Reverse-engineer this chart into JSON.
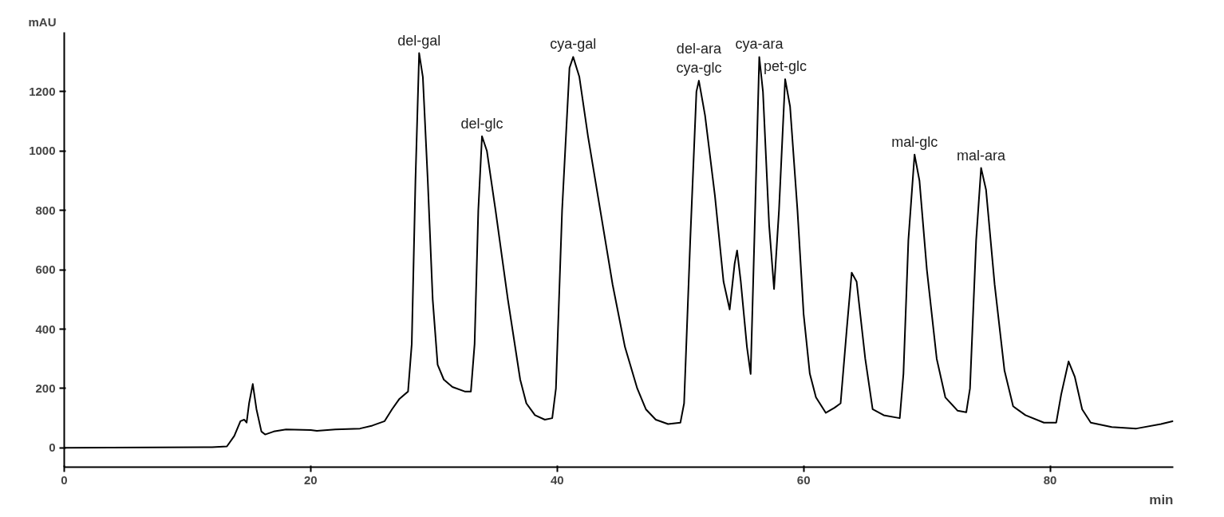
{
  "chart_data": {
    "type": "line",
    "xlabel": "min",
    "ylabel": "mAU",
    "x": [
      0,
      12,
      13.2,
      13.8,
      14.3,
      14.6,
      14.8,
      15.0,
      15.3,
      15.6,
      16.0,
      16.3,
      17,
      18,
      20,
      20.5,
      22,
      24,
      25,
      26,
      26.6,
      27.2,
      27.9,
      28.2,
      28.5,
      28.8,
      29.1,
      29.5,
      29.9,
      30.3,
      30.8,
      31.5,
      32.5,
      33.0,
      33.3,
      33.6,
      33.9,
      34.3,
      35,
      36,
      37,
      37.5,
      38.2,
      39,
      39.6,
      39.9,
      40.4,
      41.0,
      41.3,
      41.8,
      42.5,
      43.5,
      44.5,
      45.5,
      46.5,
      47.2,
      48,
      49,
      50,
      50.3,
      50.8,
      51.3,
      51.5,
      52,
      52.8,
      53.5,
      54,
      54.4,
      54.6,
      54.9,
      55.4,
      55.7,
      56.0,
      56.4,
      56.7,
      57.2,
      57.6,
      58.0,
      58.5,
      58.9,
      59.5,
      60,
      60.5,
      61,
      61.8,
      62.5,
      63.0,
      63.5,
      63.9,
      64.3,
      65,
      65.6,
      66.5,
      67.8,
      68.1,
      68.5,
      69.0,
      69.4,
      70,
      70.8,
      71.5,
      72.5,
      73.2,
      73.5,
      74.0,
      74.4,
      74.8,
      75.5,
      76.3,
      77,
      78,
      79.5,
      80.5,
      80.9,
      81.5,
      82,
      82.6,
      83.3,
      85,
      87,
      89,
      90
    ],
    "series": [
      {
        "color": "#000000",
        "values": [
          0,
          2,
          5,
          40,
          90,
          95,
          85,
          150,
          215,
          130,
          55,
          45,
          55,
          62,
          60,
          57,
          62,
          65,
          75,
          90,
          130,
          165,
          190,
          350,
          900,
          1330,
          1250,
          900,
          500,
          280,
          230,
          205,
          190,
          190,
          350,
          800,
          1050,
          1000,
          800,
          500,
          230,
          150,
          110,
          95,
          100,
          200,
          800,
          1280,
          1317,
          1250,
          1050,
          800,
          550,
          340,
          200,
          130,
          95,
          80,
          85,
          150,
          700,
          1200,
          1237,
          1120,
          850,
          560,
          466,
          620,
          665,
          560,
          340,
          249,
          700,
          1317,
          1200,
          750,
          535,
          800,
          1242,
          1150,
          800,
          450,
          250,
          170,
          118,
          135,
          150,
          400,
          590,
          560,
          300,
          130,
          110,
          100,
          250,
          700,
          988,
          900,
          600,
          300,
          170,
          125,
          120,
          200,
          700,
          943,
          870,
          550,
          260,
          140,
          110,
          85,
          85,
          180,
          291,
          240,
          130,
          85,
          70,
          65,
          80,
          90
        ]
      }
    ],
    "xlim": [
      0,
      90
    ],
    "ylim": [
      -65,
      1400
    ],
    "xticks": [
      0,
      20,
      40,
      60,
      80
    ],
    "yticks": [
      0,
      200,
      400,
      600,
      800,
      1000,
      1200
    ],
    "grid": false,
    "annotations": [
      {
        "text": "del-gal",
        "x": 28.8,
        "y": 1330
      },
      {
        "text": "del-glc",
        "x": 33.9,
        "y": 1050
      },
      {
        "text": "cya-gal",
        "x": 41.3,
        "y": 1317
      },
      {
        "text": "del-ara\ncya-glc",
        "x": 51.5,
        "y": 1237
      },
      {
        "text": "cya-ara",
        "x": 56.4,
        "y": 1317
      },
      {
        "text": "pet-glc",
        "x": 58.5,
        "y": 1242
      },
      {
        "text": "mal-glc",
        "x": 69.0,
        "y": 988
      },
      {
        "text": "mal-ara",
        "x": 74.4,
        "y": 943
      }
    ]
  }
}
